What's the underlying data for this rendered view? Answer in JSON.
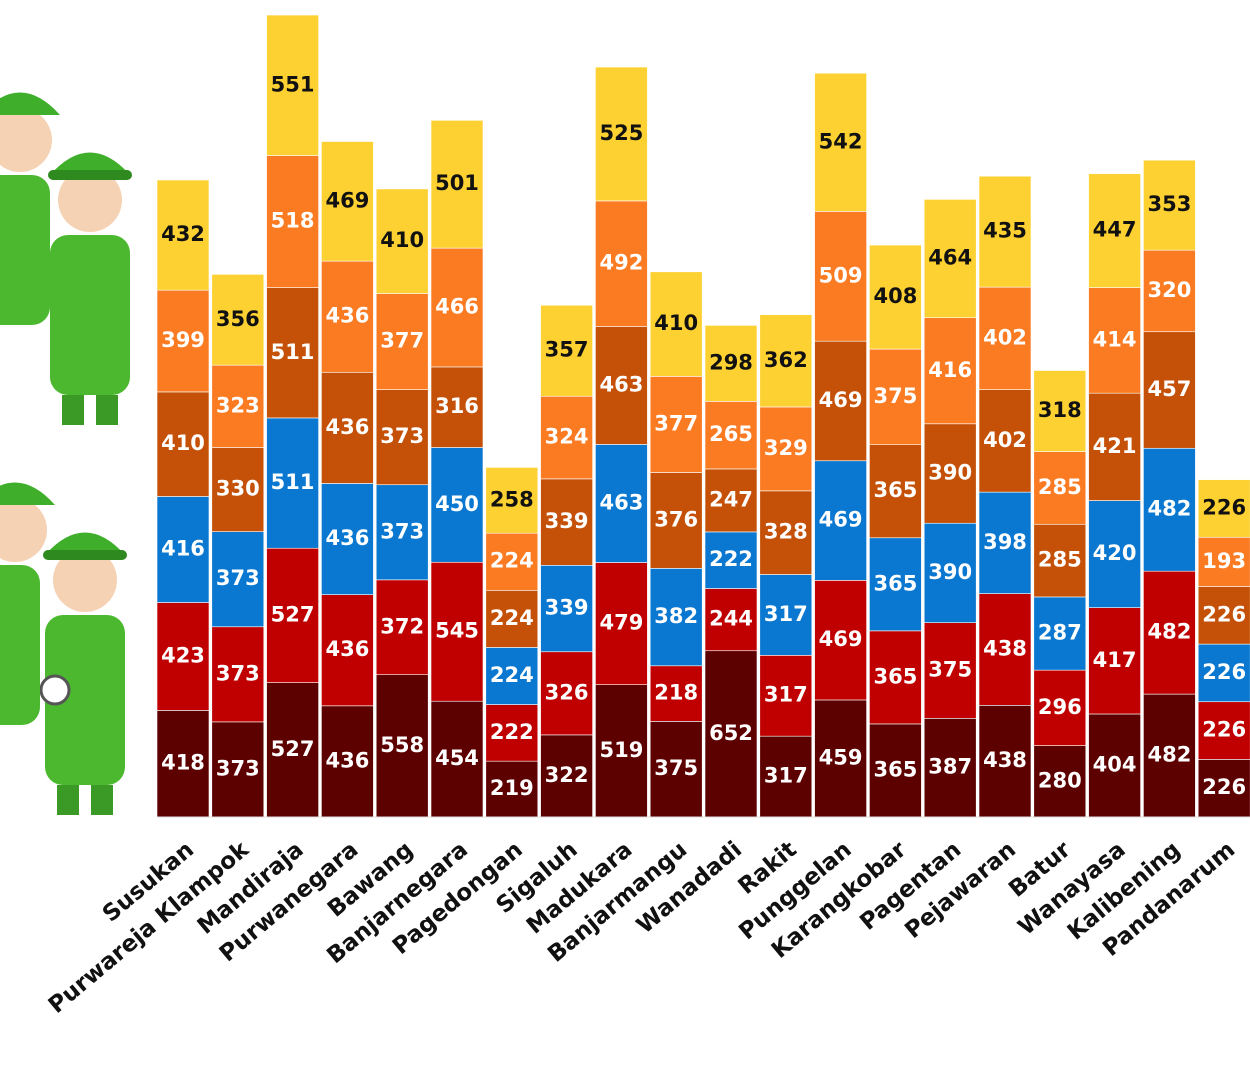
{
  "chart_data": {
    "type": "stacked-bar",
    "categories": [
      "Susukan",
      "Purwareja Klampok",
      "Mandiraja",
      "Purwanegara",
      "Bawang",
      "Banjarnegara",
      "Pagedongan",
      "Sigaluh",
      "Madukara",
      "Banjarmangu",
      "Wanadadi",
      "Rakit",
      "Punggelan",
      "Karangkobar",
      "Pagentan",
      "Pejawaran",
      "Batur",
      "Wanayasa",
      "Kalibening",
      "Pandanarum"
    ],
    "series": [
      {
        "color": "#5c0000",
        "values": [
          418,
          373,
          527,
          436,
          558,
          454,
          219,
          322,
          519,
          375,
          652,
          317,
          459,
          365,
          387,
          438,
          280,
          404,
          482,
          226
        ]
      },
      {
        "color": "#c00000",
        "values": [
          423,
          373,
          527,
          436,
          372,
          545,
          222,
          326,
          479,
          218,
          244,
          317,
          469,
          365,
          375,
          438,
          296,
          417,
          482,
          226
        ]
      },
      {
        "color": "#0a78d0",
        "values": [
          416,
          373,
          511,
          436,
          373,
          450,
          224,
          339,
          463,
          382,
          222,
          317,
          469,
          365,
          390,
          398,
          287,
          420,
          482,
          226
        ]
      },
      {
        "color": "#c55108",
        "values": [
          410,
          330,
          511,
          436,
          373,
          316,
          224,
          339,
          463,
          376,
          247,
          328,
          469,
          365,
          390,
          402,
          285,
          421,
          457,
          226
        ]
      },
      {
        "color": "#fb7b22",
        "values": [
          399,
          323,
          518,
          436,
          377,
          466,
          224,
          324,
          492,
          377,
          265,
          329,
          509,
          375,
          416,
          402,
          285,
          414,
          320,
          193
        ]
      },
      {
        "color": "#fdd131",
        "values": [
          432,
          356,
          551,
          469,
          410,
          501,
          258,
          357,
          525,
          410,
          298,
          362,
          542,
          408,
          464,
          435,
          318,
          447,
          353,
          226
        ]
      }
    ]
  }
}
